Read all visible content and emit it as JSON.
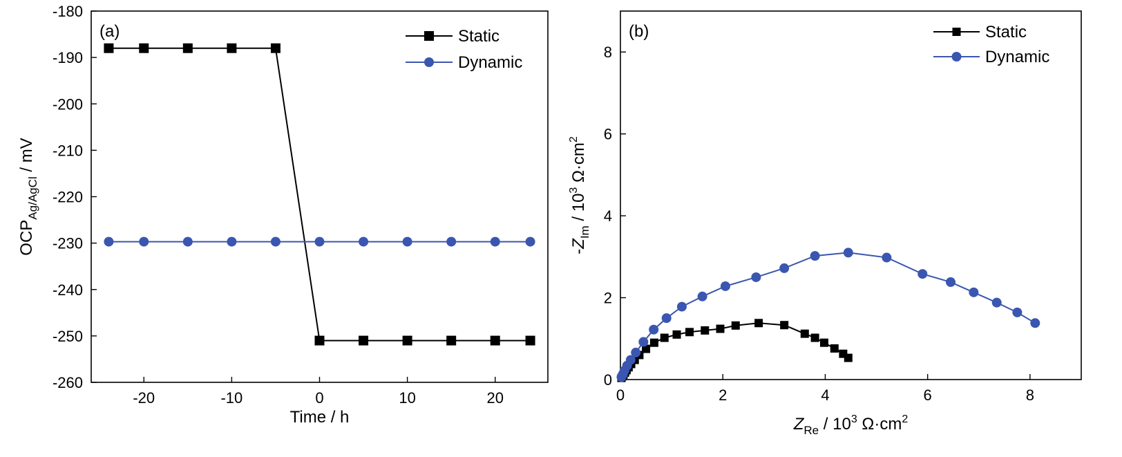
{
  "chart_data": [
    {
      "type": "line",
      "panel_label": "(a)",
      "xlabel": "Time / h",
      "ylabel": {
        "main": "OCP",
        "sub": "Ag/AgCl",
        "tail": " / mV"
      },
      "xlim": [
        -26,
        26
      ],
      "ylim": [
        -260,
        -180
      ],
      "xticks": [
        -20,
        -10,
        0,
        10,
        20
      ],
      "yticks": [
        -260,
        -250,
        -240,
        -230,
        -220,
        -210,
        -200,
        -190,
        -180
      ],
      "grid": false,
      "legend_position": "top-right",
      "series": [
        {
          "name": "Static",
          "color": "#000000",
          "marker": "square",
          "x": [
            -24,
            -20,
            -15,
            -10,
            -5,
            0,
            5,
            10,
            15,
            20,
            24
          ],
          "y": [
            -188,
            -188,
            -188,
            -188,
            -188,
            -251,
            -251,
            -251,
            -251,
            -251,
            -251
          ]
        },
        {
          "name": "Dynamic",
          "color": "#3a56b0",
          "marker": "circle",
          "x": [
            -24,
            -20,
            -15,
            -10,
            -5,
            0,
            5,
            10,
            15,
            20,
            24
          ],
          "y": [
            -229.7,
            -229.7,
            -229.7,
            -229.7,
            -229.7,
            -229.7,
            -229.7,
            -229.7,
            -229.7,
            -229.7,
            -229.7
          ]
        }
      ]
    },
    {
      "type": "scatter",
      "panel_label": "(b)",
      "xlabel": {
        "main": "Z",
        "sub": "Re",
        "mid": " / 10",
        "sup": "3",
        "tail": " Ω·cm",
        "sup2": "2"
      },
      "ylabel": {
        "main": "-Z",
        "sub": "Im",
        "mid": " / 10",
        "sup": "3",
        "tail": " Ω·cm",
        "sup2": "2"
      },
      "xlim": [
        0,
        9
      ],
      "ylim": [
        0,
        9
      ],
      "xticks": [
        0,
        2,
        4,
        6,
        8
      ],
      "yticks": [
        0,
        2,
        4,
        6,
        8
      ],
      "grid": false,
      "legend_position": "top-right",
      "series": [
        {
          "name": "Static",
          "color": "#000000",
          "marker": "square",
          "x": [
            0.02,
            0.04,
            0.06,
            0.09,
            0.12,
            0.16,
            0.21,
            0.28,
            0.37,
            0.5,
            0.66,
            0.86,
            1.1,
            1.35,
            1.65,
            1.95,
            2.25,
            2.7,
            3.2,
            3.6,
            3.8,
            3.98,
            4.18,
            4.35,
            4.45
          ],
          "y": [
            0.04,
            0.08,
            0.12,
            0.17,
            0.23,
            0.3,
            0.38,
            0.48,
            0.6,
            0.75,
            0.9,
            1.02,
            1.1,
            1.16,
            1.2,
            1.24,
            1.32,
            1.38,
            1.33,
            1.12,
            1.02,
            0.9,
            0.76,
            0.63,
            0.53
          ]
        },
        {
          "name": "Dynamic",
          "color": "#3a56b0",
          "marker": "circle",
          "x": [
            0.02,
            0.05,
            0.08,
            0.13,
            0.2,
            0.3,
            0.45,
            0.65,
            0.9,
            1.2,
            1.6,
            2.05,
            2.65,
            3.2,
            3.8,
            4.45,
            5.2,
            5.9,
            6.45,
            6.9,
            7.35,
            7.75,
            8.1
          ],
          "y": [
            0.06,
            0.13,
            0.22,
            0.34,
            0.48,
            0.66,
            0.92,
            1.22,
            1.5,
            1.78,
            2.03,
            2.28,
            2.5,
            2.72,
            3.02,
            3.1,
            2.98,
            2.58,
            2.38,
            2.13,
            1.88,
            1.64,
            1.38
          ]
        }
      ]
    }
  ]
}
